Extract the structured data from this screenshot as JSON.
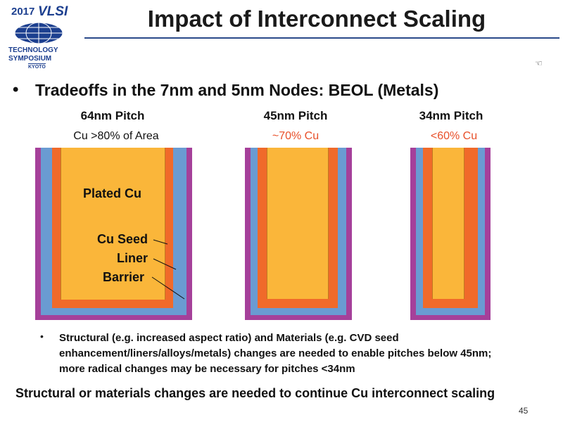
{
  "logo": {
    "year": "2017",
    "brand": "VLSI",
    "line1": "TECHNOLOGY",
    "line2": "SYMPOSIUM",
    "city": "KYOTO"
  },
  "slide": {
    "title": "Impact of Interconnect Scaling",
    "bullet": "Tradeoffs in the 7nm and 5nm Nodes: BEOL (Metals)",
    "columns": [
      {
        "pitch": "64nm Pitch",
        "fraction": "Cu >80% of Area",
        "fraction_color": "#111111"
      },
      {
        "pitch": "45nm Pitch",
        "fraction": "~70% Cu",
        "fraction_color": "#e8502a"
      },
      {
        "pitch": "34nm Pitch",
        "fraction": "<60% Cu",
        "fraction_color": "#e8502a"
      }
    ],
    "labels": {
      "plated": "Plated Cu",
      "seed": "Cu Seed",
      "liner": "Liner",
      "barrier": "Barrier"
    },
    "sub_bullet": "Structural (e.g. increased aspect ratio) and Materials (e.g. CVD seed enhancement/liners/alloys/metals) changes are needed to enable pitches below 45nm; more radical changes may be necessary for pitches <34nm",
    "conclusion": "Structural or materials changes are needed to continue Cu interconnect scaling",
    "page_number": "45"
  },
  "colors": {
    "barrier": "#a5409a",
    "liner": "#6a9bd2",
    "seed": "#f06a2a",
    "copper": "#fab63a"
  }
}
